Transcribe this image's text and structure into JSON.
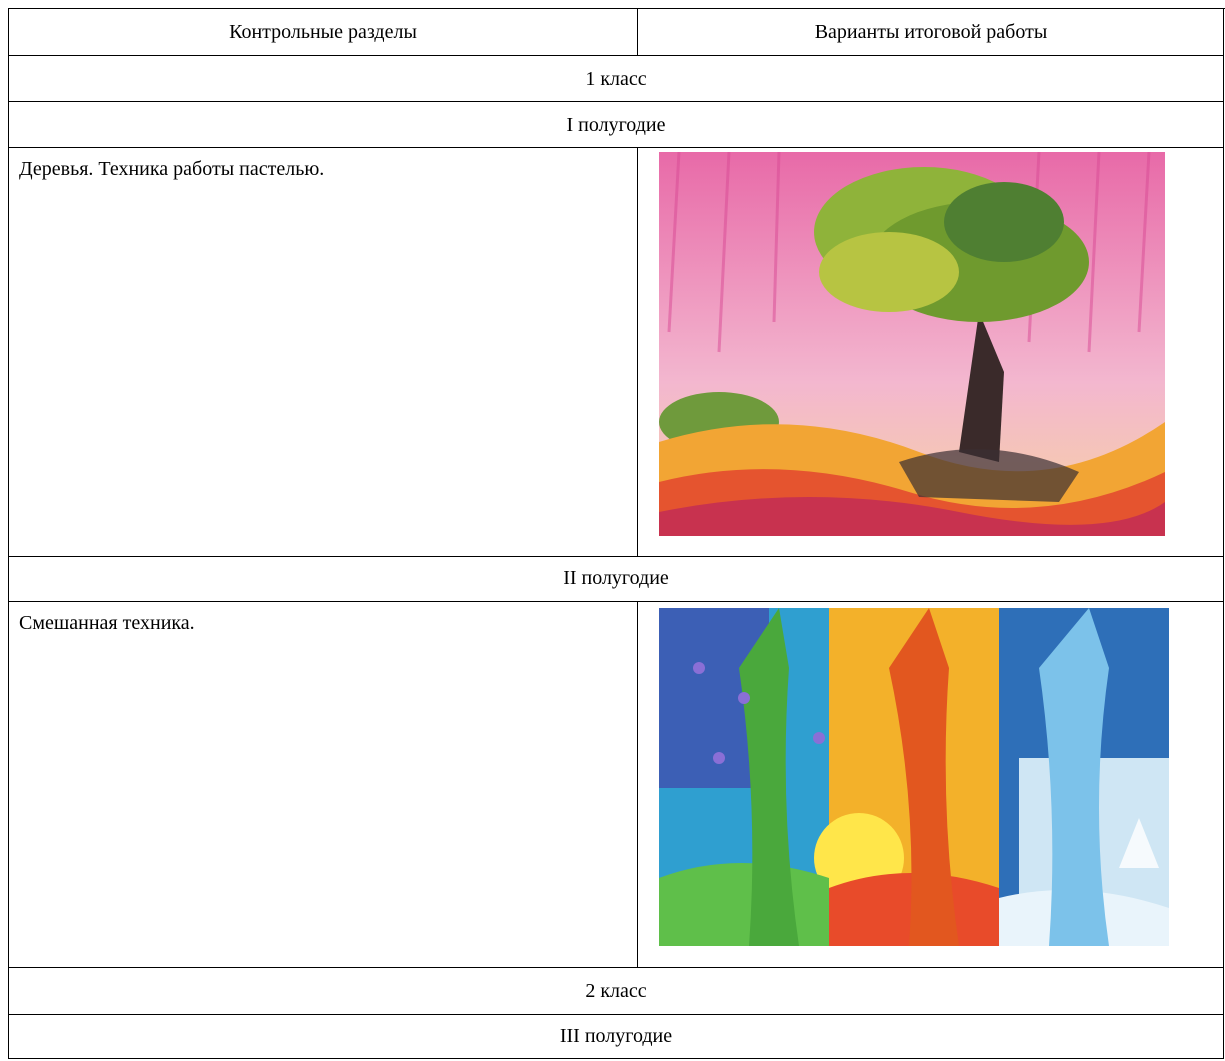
{
  "table": {
    "header": [
      "Контрольные разделы",
      "Варианты итоговой работы"
    ],
    "rows": [
      [
        "1 класс"
      ],
      [
        "I полугодие"
      ],
      [
        "Деревья. Техника работы пастелью."
      ],
      [
        "II полугодие"
      ],
      [
        "Смешанная техника."
      ],
      [
        "2 класс"
      ],
      [
        "III полугодие"
      ]
    ]
  }
}
